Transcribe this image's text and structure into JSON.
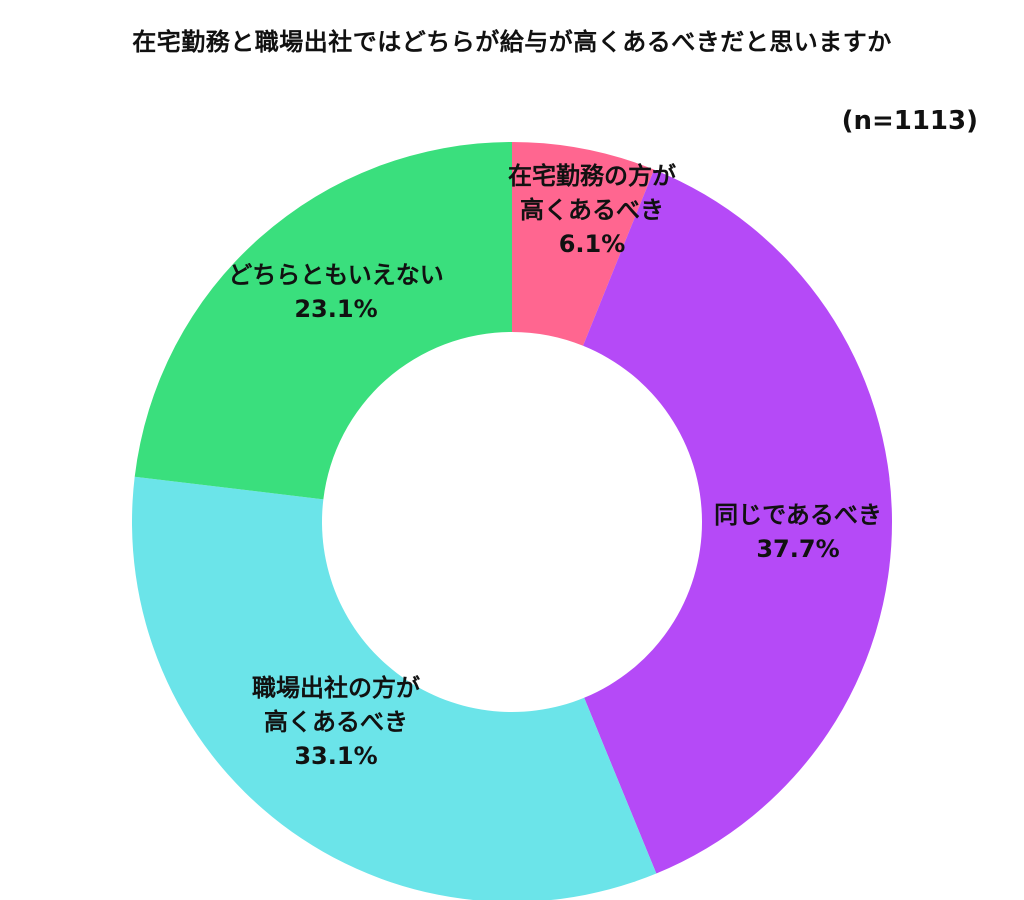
{
  "chart_data": {
    "type": "pie",
    "subtype": "donut",
    "title": "在宅勤務と職場出社ではどちらが給与が高くあるべきだと思いますか",
    "sample_size": "(n=1113)",
    "slices": [
      {
        "lines": [
          "在宅勤務の方が",
          "高くあるべき"
        ],
        "value": 6.1,
        "value_label": "6.1%",
        "color": "#FF6690"
      },
      {
        "lines": [
          "同じであるべき"
        ],
        "value": 37.7,
        "value_label": "37.7%",
        "color": "#B54AF7"
      },
      {
        "lines": [
          "職場出社の方が",
          "高くあるべき"
        ],
        "value": 33.1,
        "value_label": "33.1%",
        "color": "#6BE4E9"
      },
      {
        "lines": [
          "どちらともいえない"
        ],
        "value": 23.1,
        "value_label": "23.1%",
        "color": "#3ADF7D"
      }
    ],
    "start": "top",
    "direction": "clockwise",
    "legend": "none"
  }
}
